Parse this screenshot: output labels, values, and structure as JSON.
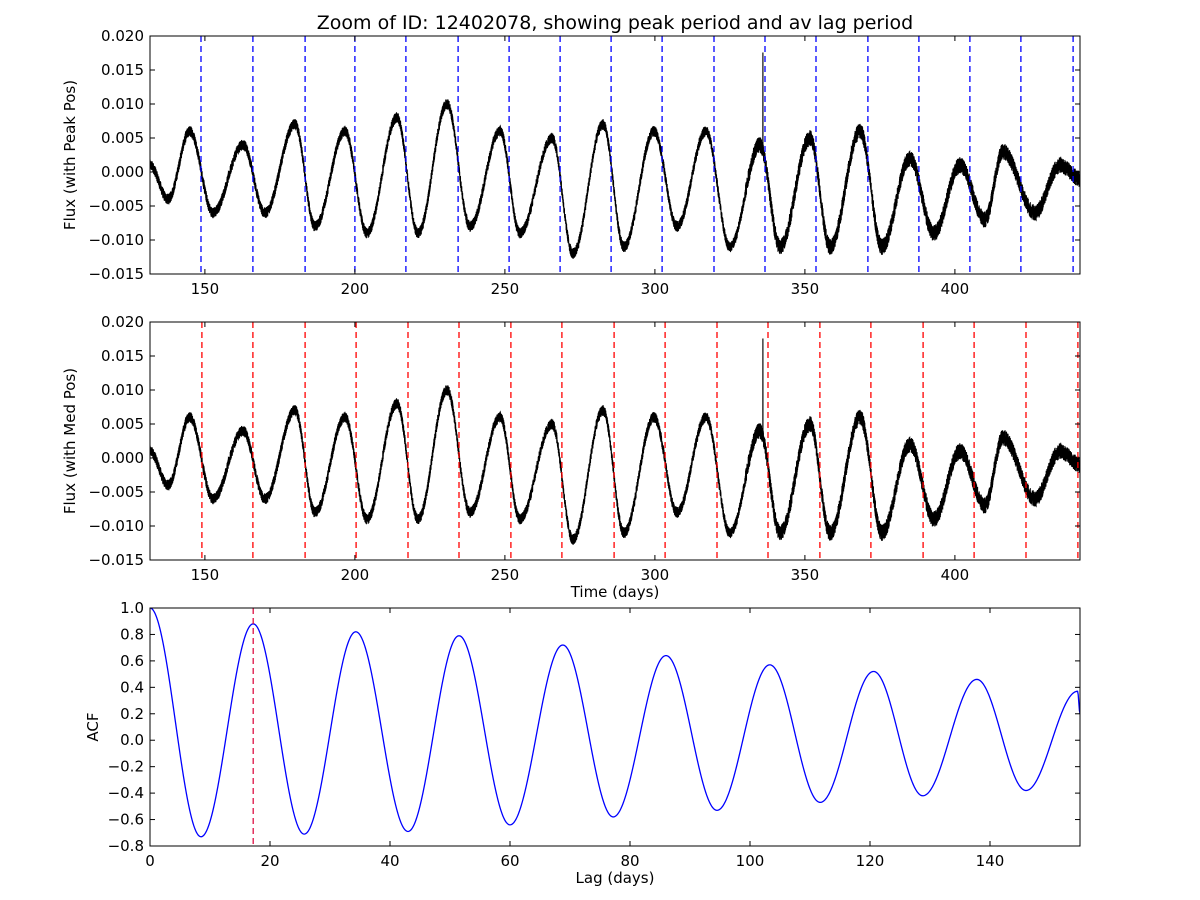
{
  "title": "Zoom of ID: 12402078, showing peak period and av lag period",
  "chart_data": [
    {
      "type": "line",
      "ylabel": "Flux (with Peak Pos)",
      "xlabel": "",
      "xlim": [
        131.7,
        441.7
      ],
      "ylim": [
        -0.015,
        0.02
      ],
      "xticks": [
        150,
        200,
        250,
        300,
        350,
        400
      ],
      "xtick_labels": [
        "150",
        "200",
        "250",
        "300",
        "350",
        "400"
      ],
      "yticks": [
        -0.015,
        -0.01,
        -0.005,
        0.0,
        0.005,
        0.01,
        0.015,
        0.02
      ],
      "ytick_labels": [
        "−0.015",
        "−0.010",
        "−0.005",
        "0.000",
        "0.005",
        "0.010",
        "0.015",
        "0.020"
      ],
      "series_color": "#000000",
      "marker_color": "#0000ff",
      "vlines": [
        148.7,
        166.0,
        183.4,
        200.0,
        217.0,
        234.4,
        251.4,
        268.4,
        285.4,
        302.4,
        319.7,
        336.7,
        353.7,
        371.0,
        388.0,
        405.0,
        422.0,
        439.4
      ],
      "light_curve_extrema": {
        "t": [
          131.7,
          137.7,
          145.0,
          152.7,
          162.7,
          170.0,
          180.0,
          186.7,
          196.7,
          204.0,
          214.0,
          221.0,
          230.7,
          238.4,
          248.4,
          255.0,
          265.7,
          272.7,
          282.7,
          289.7,
          299.7,
          307.4,
          317.0,
          325.0,
          335.0,
          341.7,
          351.7,
          358.4,
          368.4,
          375.7,
          385.0,
          393.0,
          401.7,
          410.0,
          416.0,
          426.7,
          435.0,
          441.7
        ],
        "flux": [
          0.001,
          -0.004,
          0.006,
          -0.006,
          0.004,
          -0.006,
          0.007,
          -0.008,
          0.006,
          -0.009,
          0.008,
          -0.009,
          0.01,
          -0.008,
          0.006,
          -0.009,
          0.005,
          -0.012,
          0.007,
          -0.011,
          0.006,
          -0.008,
          0.006,
          -0.011,
          0.004,
          -0.011,
          0.005,
          -0.011,
          0.006,
          -0.011,
          0.002,
          -0.009,
          0.001,
          -0.007,
          0.003,
          -0.006,
          0.001,
          -0.001
        ]
      },
      "spike": {
        "t": 336.0,
        "flux": 0.0175
      }
    },
    {
      "type": "line",
      "ylabel": "Flux (with Med Pos)",
      "xlabel": "Time (days)",
      "xlim": [
        131.7,
        441.7
      ],
      "ylim": [
        -0.015,
        0.02
      ],
      "xticks": [
        150,
        200,
        250,
        300,
        350,
        400
      ],
      "xtick_labels": [
        "150",
        "200",
        "250",
        "300",
        "350",
        "400"
      ],
      "yticks": [
        -0.015,
        -0.01,
        -0.005,
        0.0,
        0.005,
        0.01,
        0.015,
        0.02
      ],
      "ytick_labels": [
        "−0.015",
        "−0.010",
        "−0.005",
        "0.000",
        "0.005",
        "0.010",
        "0.015",
        "0.020"
      ],
      "series_color": "#000000",
      "marker_color": "#ff0000",
      "vlines": [
        149.0,
        166.0,
        183.4,
        200.4,
        217.7,
        234.7,
        252.0,
        269.0,
        286.4,
        303.4,
        320.7,
        337.7,
        355.0,
        372.0,
        389.4,
        406.4,
        423.7,
        441.0
      ],
      "same_data_as": "panel 1"
    },
    {
      "type": "line",
      "ylabel": "ACF",
      "xlabel": "Lag (days)",
      "xlim": [
        0,
        155
      ],
      "ylim": [
        -0.8,
        1.0
      ],
      "xticks": [
        0,
        20,
        40,
        60,
        80,
        100,
        120,
        140
      ],
      "xtick_labels": [
        "0",
        "20",
        "40",
        "60",
        "80",
        "100",
        "120",
        "140"
      ],
      "yticks": [
        -0.8,
        -0.6,
        -0.4,
        -0.2,
        0.0,
        0.2,
        0.4,
        0.6,
        0.8,
        1.0
      ],
      "ytick_labels": [
        "−0.8",
        "−0.6",
        "−0.4",
        "−0.2",
        "0.0",
        "0.2",
        "0.4",
        "0.6",
        "0.8",
        "1.0"
      ],
      "series_color": "#0000ff",
      "marker_color": "#dd1144",
      "vlines": [
        17.2
      ],
      "acf_extrema": {
        "lag": [
          0,
          8.5,
          17.2,
          25.7,
          34.3,
          43.0,
          51.5,
          60.0,
          68.8,
          77.2,
          86.0,
          94.5,
          103.3,
          111.7,
          120.6,
          128.8,
          137.8,
          146.0,
          154.6,
          155.0
        ],
        "acf": [
          1.0,
          -0.73,
          0.88,
          -0.71,
          0.82,
          -0.69,
          0.79,
          -0.64,
          0.72,
          -0.58,
          0.64,
          -0.53,
          0.57,
          -0.47,
          0.52,
          -0.42,
          0.46,
          -0.38,
          0.37,
          0.2
        ]
      }
    }
  ]
}
